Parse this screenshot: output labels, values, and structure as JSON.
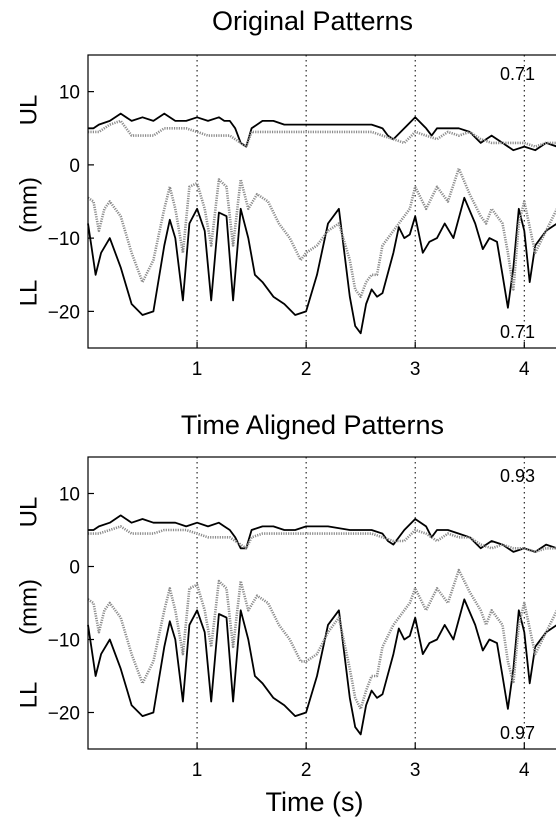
{
  "chart_data": [
    {
      "type": "line",
      "title": "Original Patterns",
      "xlabel": "",
      "ylabel": "(mm)",
      "xlim": [
        0,
        4.3
      ],
      "ylim": [
        -25,
        15
      ],
      "xticks": [
        "1",
        "2",
        "3",
        "4"
      ],
      "yticks": [
        "10",
        "0",
        "−10",
        "−20"
      ],
      "group_labels": {
        "upper": "UL",
        "lower": "LL"
      },
      "correlations": {
        "upper": "0.71",
        "lower": "0.71"
      },
      "vlines": [
        1,
        2,
        3,
        4
      ],
      "grid": "dotted vertical lines at x ticks",
      "series": [
        {
          "style": "solid",
          "group": "UL",
          "x": [
            0,
            0.05,
            0.1,
            0.2,
            0.3,
            0.4,
            0.5,
            0.6,
            0.7,
            0.8,
            0.9,
            1.0,
            1.1,
            1.2,
            1.25,
            1.3,
            1.35,
            1.4,
            1.45,
            1.5,
            1.6,
            1.7,
            1.8,
            1.9,
            2.0,
            2.2,
            2.4,
            2.6,
            2.7,
            2.75,
            2.8,
            2.9,
            3.0,
            3.1,
            3.15,
            3.2,
            3.3,
            3.4,
            3.5,
            3.6,
            3.7,
            3.8,
            3.9,
            4.0,
            4.1,
            4.2,
            4.3
          ],
          "y": [
            5,
            5,
            5.5,
            6,
            7,
            6,
            6.5,
            6,
            7,
            6,
            6,
            6.5,
            6,
            6.5,
            6,
            6,
            5,
            3,
            2.5,
            5,
            6,
            6,
            5.5,
            5.5,
            5.5,
            5.5,
            5.5,
            5.5,
            5,
            4,
            3.5,
            5,
            6.5,
            5,
            4,
            5,
            5,
            5,
            4.5,
            3,
            4,
            3,
            2,
            2.5,
            2,
            3,
            2.5
          ]
        },
        {
          "style": "dotted",
          "group": "UL",
          "x": [
            0,
            0.05,
            0.1,
            0.2,
            0.3,
            0.4,
            0.5,
            0.6,
            0.7,
            0.8,
            0.9,
            1.0,
            1.1,
            1.2,
            1.3,
            1.4,
            1.45,
            1.5,
            1.6,
            1.7,
            1.8,
            2.0,
            2.2,
            2.4,
            2.6,
            2.7,
            2.8,
            2.9,
            3.0,
            3.1,
            3.2,
            3.3,
            3.4,
            3.5,
            3.6,
            3.7,
            3.8,
            3.9,
            4.0,
            4.1,
            4.2,
            4.3
          ],
          "y": [
            4.5,
            4.5,
            4.5,
            5.5,
            6,
            4,
            4,
            4,
            5,
            5,
            5,
            4.5,
            4,
            4,
            4,
            3,
            2.5,
            4.5,
            4.5,
            4.5,
            4.5,
            4.5,
            4.5,
            4.5,
            4.5,
            4,
            3.5,
            3,
            4.5,
            4,
            3.5,
            4.5,
            4,
            4.5,
            3.5,
            3,
            3,
            3,
            3,
            2.5,
            3,
            3
          ]
        },
        {
          "style": "solid",
          "group": "LL",
          "x": [
            0,
            0.03,
            0.07,
            0.12,
            0.2,
            0.3,
            0.4,
            0.5,
            0.6,
            0.7,
            0.75,
            0.8,
            0.87,
            0.93,
            1.0,
            1.07,
            1.13,
            1.2,
            1.27,
            1.33,
            1.4,
            1.47,
            1.53,
            1.6,
            1.7,
            1.8,
            1.9,
            2.0,
            2.1,
            2.2,
            2.3,
            2.4,
            2.45,
            2.5,
            2.55,
            2.6,
            2.65,
            2.7,
            2.8,
            2.85,
            2.9,
            2.95,
            3.0,
            3.07,
            3.13,
            3.2,
            3.27,
            3.35,
            3.45,
            3.55,
            3.62,
            3.68,
            3.75,
            3.8,
            3.85,
            3.9,
            3.95,
            4.0,
            4.05,
            4.1,
            4.2,
            4.3
          ],
          "y": [
            -8,
            -11,
            -15,
            -12,
            -10,
            -14,
            -19,
            -20.5,
            -20,
            -11,
            -7.5,
            -10,
            -18.5,
            -8,
            -6,
            -9,
            -18.5,
            -6.5,
            -7,
            -18.5,
            -6,
            -10,
            -15,
            -16,
            -18,
            -19,
            -20.5,
            -20,
            -15,
            -8,
            -6,
            -18,
            -22,
            -23,
            -19,
            -17,
            -18,
            -17.5,
            -12,
            -8.5,
            -10,
            -9.5,
            -7,
            -12,
            -10.5,
            -10,
            -8,
            -10,
            -4.5,
            -8,
            -11.5,
            -10,
            -10.5,
            -15,
            -19.5,
            -14,
            -6,
            -9,
            -16,
            -11,
            -9,
            -8
          ]
        },
        {
          "style": "dotted",
          "group": "LL",
          "x": [
            0,
            0.05,
            0.1,
            0.15,
            0.2,
            0.3,
            0.4,
            0.5,
            0.6,
            0.7,
            0.75,
            0.8,
            0.87,
            0.93,
            1.0,
            1.07,
            1.13,
            1.2,
            1.27,
            1.33,
            1.4,
            1.47,
            1.55,
            1.65,
            1.75,
            1.85,
            1.95,
            2.0,
            2.1,
            2.2,
            2.3,
            2.4,
            2.45,
            2.5,
            2.55,
            2.6,
            2.65,
            2.7,
            2.8,
            2.9,
            2.95,
            3.0,
            3.1,
            3.2,
            3.3,
            3.4,
            3.5,
            3.6,
            3.65,
            3.7,
            3.8,
            3.85,
            3.9,
            3.95,
            4.0,
            4.1,
            4.2,
            4.3
          ],
          "y": [
            -4.5,
            -5,
            -9,
            -6,
            -5,
            -7,
            -12,
            -16,
            -13,
            -6,
            -3,
            -6,
            -12,
            -3,
            -2.5,
            -6,
            -11,
            -2,
            -3,
            -11,
            -2,
            -6,
            -4,
            -5,
            -8,
            -10,
            -13,
            -12,
            -11,
            -9,
            -8,
            -13,
            -17,
            -18,
            -16,
            -15,
            -15,
            -11,
            -9,
            -7,
            -6,
            -3,
            -6,
            -3,
            -5,
            -0.5,
            -4,
            -7,
            -8,
            -6,
            -8,
            -12,
            -17,
            -8,
            -5,
            -12,
            -9,
            -6
          ]
        }
      ]
    },
    {
      "type": "line",
      "title": "Time Aligned Patterns",
      "xlabel": "Time (s)",
      "ylabel": "(mm)",
      "xlim": [
        0,
        4.3
      ],
      "ylim": [
        -25,
        15
      ],
      "xticks": [
        "1",
        "2",
        "3",
        "4"
      ],
      "yticks": [
        "10",
        "0",
        "−10",
        "−20"
      ],
      "group_labels": {
        "upper": "UL",
        "lower": "LL"
      },
      "correlations": {
        "upper": "0.93",
        "lower": "0.97"
      },
      "vlines": [
        1,
        2,
        3,
        4
      ],
      "grid": "dotted vertical lines at x ticks",
      "series": [
        {
          "style": "solid",
          "group": "UL",
          "x": [
            0,
            0.05,
            0.1,
            0.2,
            0.3,
            0.4,
            0.5,
            0.6,
            0.7,
            0.8,
            0.9,
            1.0,
            1.1,
            1.2,
            1.25,
            1.3,
            1.35,
            1.4,
            1.45,
            1.5,
            1.6,
            1.7,
            1.8,
            1.9,
            2.0,
            2.2,
            2.4,
            2.6,
            2.7,
            2.75,
            2.8,
            2.9,
            3.0,
            3.1,
            3.15,
            3.2,
            3.3,
            3.4,
            3.5,
            3.6,
            3.7,
            3.8,
            3.9,
            4.0,
            4.1,
            4.2,
            4.3
          ],
          "y": [
            5,
            5,
            5.5,
            6,
            7,
            6,
            6.5,
            6,
            6,
            6,
            5.5,
            6,
            5.5,
            6,
            5.5,
            5,
            4,
            2.5,
            2.5,
            5,
            5.5,
            5.5,
            5,
            5,
            5.5,
            5.5,
            5,
            5,
            4.5,
            3.5,
            3,
            5,
            6.5,
            5.5,
            4,
            5,
            5,
            4.5,
            4,
            2.5,
            3.5,
            3,
            2,
            2.5,
            2,
            3,
            2.5
          ]
        },
        {
          "style": "dotted",
          "group": "UL",
          "x": [
            0,
            0.05,
            0.1,
            0.2,
            0.3,
            0.4,
            0.5,
            0.6,
            0.7,
            0.8,
            0.9,
            1.0,
            1.1,
            1.2,
            1.3,
            1.4,
            1.45,
            1.5,
            1.6,
            1.7,
            1.8,
            2.0,
            2.2,
            2.4,
            2.6,
            2.7,
            2.8,
            2.9,
            3.0,
            3.1,
            3.2,
            3.3,
            3.4,
            3.5,
            3.6,
            3.7,
            3.8,
            3.9,
            4.0,
            4.1,
            4.2,
            4.3
          ],
          "y": [
            4.5,
            4.5,
            4.5,
            5,
            5.5,
            4.5,
            4.5,
            4.5,
            5,
            5,
            5,
            4.5,
            4,
            4,
            4,
            3,
            2.5,
            4,
            4.5,
            4.5,
            4.5,
            4.5,
            4.5,
            4.5,
            4.5,
            4,
            3.5,
            3.5,
            5,
            4.5,
            3.5,
            4.5,
            4,
            4,
            3,
            2.5,
            3,
            2.5,
            2.5,
            2,
            2.5,
            2.5
          ]
        },
        {
          "style": "solid",
          "group": "LL",
          "x": [
            0,
            0.03,
            0.07,
            0.12,
            0.2,
            0.3,
            0.4,
            0.5,
            0.6,
            0.7,
            0.75,
            0.8,
            0.87,
            0.93,
            1.0,
            1.07,
            1.13,
            1.2,
            1.27,
            1.33,
            1.4,
            1.47,
            1.53,
            1.6,
            1.7,
            1.8,
            1.9,
            2.0,
            2.1,
            2.2,
            2.3,
            2.4,
            2.45,
            2.5,
            2.55,
            2.6,
            2.65,
            2.7,
            2.8,
            2.85,
            2.9,
            2.95,
            3.0,
            3.07,
            3.13,
            3.2,
            3.27,
            3.35,
            3.45,
            3.55,
            3.62,
            3.68,
            3.75,
            3.8,
            3.85,
            3.9,
            3.95,
            4.0,
            4.05,
            4.1,
            4.2,
            4.3
          ],
          "y": [
            -8,
            -11,
            -15,
            -12,
            -10,
            -14,
            -19,
            -20.5,
            -20,
            -11,
            -7.5,
            -10,
            -18.5,
            -8,
            -6,
            -9,
            -18.5,
            -6.5,
            -7,
            -18.5,
            -6,
            -10,
            -15,
            -16,
            -18,
            -19,
            -20.5,
            -20,
            -15,
            -8,
            -6,
            -18,
            -22,
            -23,
            -19,
            -17,
            -18,
            -17.5,
            -12,
            -8.5,
            -10,
            -9.5,
            -7,
            -12,
            -10.5,
            -10,
            -8,
            -10,
            -4.5,
            -8,
            -11.5,
            -10,
            -10.5,
            -15,
            -19.5,
            -14,
            -6,
            -9,
            -16,
            -11,
            -9,
            -8
          ]
        },
        {
          "style": "dotted",
          "group": "LL",
          "x": [
            0,
            0.05,
            0.1,
            0.15,
            0.2,
            0.3,
            0.4,
            0.5,
            0.6,
            0.7,
            0.75,
            0.8,
            0.87,
            0.93,
            1.0,
            1.07,
            1.13,
            1.2,
            1.27,
            1.33,
            1.4,
            1.47,
            1.55,
            1.65,
            1.75,
            1.85,
            1.95,
            2.0,
            2.1,
            2.2,
            2.3,
            2.4,
            2.45,
            2.5,
            2.55,
            2.6,
            2.65,
            2.7,
            2.8,
            2.9,
            2.95,
            3.0,
            3.1,
            3.2,
            3.3,
            3.4,
            3.5,
            3.6,
            3.65,
            3.7,
            3.8,
            3.85,
            3.9,
            3.95,
            4.0,
            4.1,
            4.2,
            4.3
          ],
          "y": [
            -4.5,
            -5,
            -9,
            -6,
            -5,
            -7,
            -12,
            -16,
            -13,
            -6,
            -3,
            -6,
            -12,
            -3,
            -2.5,
            -6,
            -11,
            -2,
            -3,
            -11,
            -2,
            -6,
            -4,
            -5,
            -8,
            -10,
            -13,
            -13,
            -12,
            -9,
            -7,
            -14,
            -18,
            -19.5,
            -17,
            -15,
            -15,
            -11,
            -8,
            -6,
            -5,
            -3,
            -6,
            -3,
            -5,
            -0.5,
            -3.5,
            -6,
            -8,
            -6,
            -8,
            -13,
            -16,
            -8,
            -5,
            -12,
            -9,
            -6
          ]
        }
      ]
    }
  ],
  "colors": {
    "solid": "#000000",
    "dotted": "#8c8c8c"
  }
}
